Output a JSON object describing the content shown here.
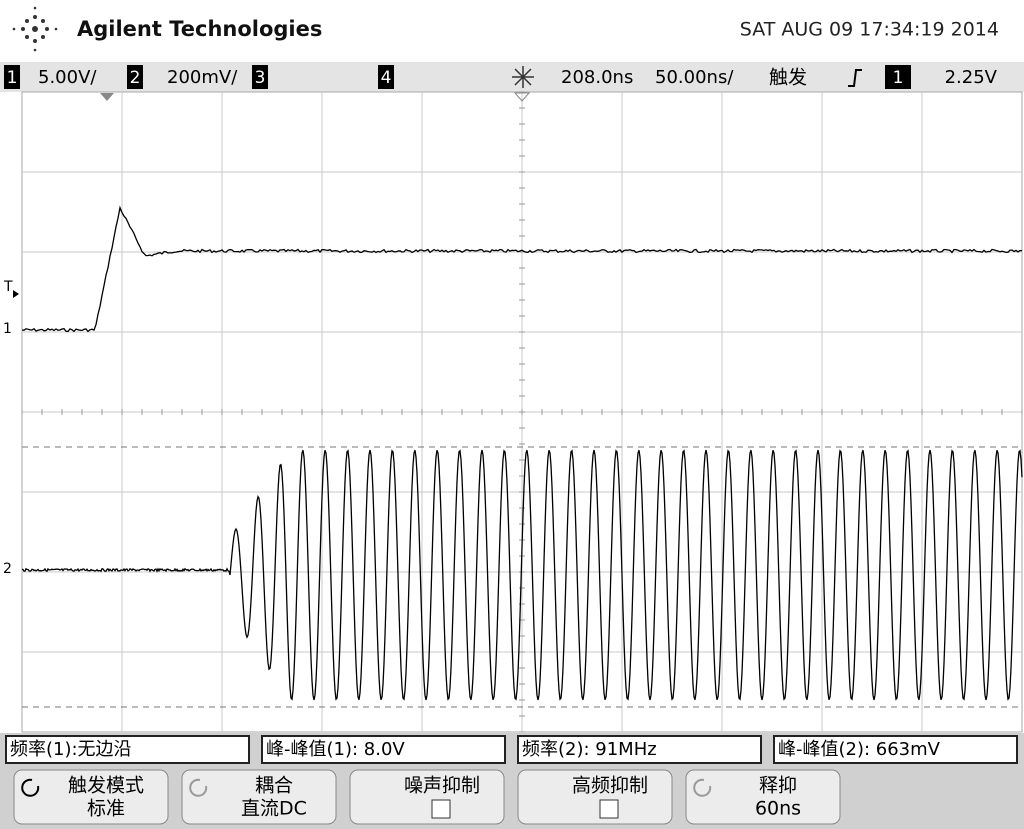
{
  "header": {
    "brand": "Agilent Technologies",
    "datetime": "SAT AUG 09 17:34:19 2014"
  },
  "status_bar": {
    "channels": [
      {
        "number": "1",
        "scale": "5.00V/"
      },
      {
        "number": "2",
        "scale": "200mV/"
      },
      {
        "number": "3"
      },
      {
        "number": "4"
      }
    ],
    "delay": "208.0ns",
    "timebase": "50.00ns/",
    "trigger_label": "触发",
    "trigger_source": "1",
    "trigger_level": "2.25V"
  },
  "markers": {
    "trigger": "T",
    "ch1": "1",
    "ch2": "2"
  },
  "measurements": [
    "频率(1):无边沿",
    "峰-峰值(1): 8.0V",
    "频率(2): 91MHz",
    "峰-峰值(2): 663mV"
  ],
  "softkeys": [
    {
      "label": "触发模式",
      "value": "标准"
    },
    {
      "label": "耦合",
      "value": "直流DC"
    },
    {
      "label": "噪声抑制"
    },
    {
      "label": "高频抑制"
    },
    {
      "label": "释抑",
      "value": "60ns"
    }
  ]
}
